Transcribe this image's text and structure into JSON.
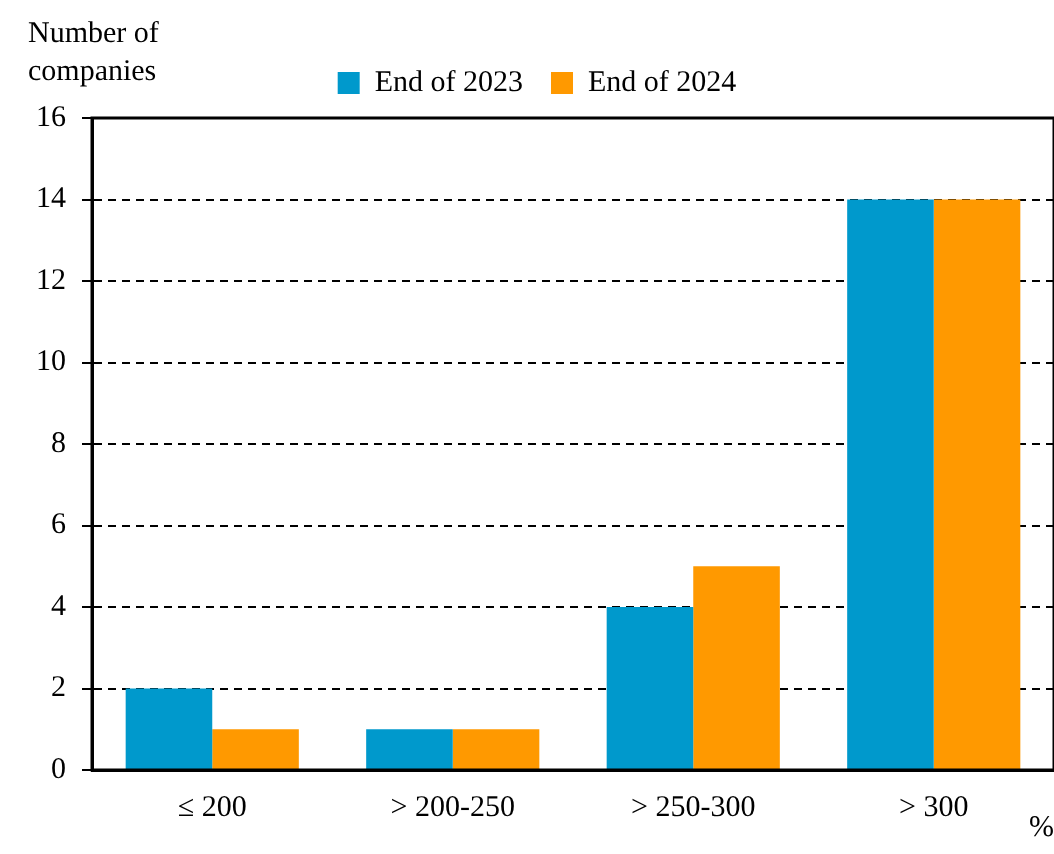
{
  "chart_data": {
    "type": "bar",
    "ylabel": "Number of companies",
    "xlabel": "%",
    "categories": [
      "≤ 200",
      "> 200-250",
      "> 250-300",
      "> 300"
    ],
    "series": [
      {
        "name": "End of 2023",
        "color": "#0099cc",
        "values": [
          2,
          1,
          4,
          14
        ]
      },
      {
        "name": "End of 2024",
        "color": "#ff9900",
        "values": [
          1,
          1,
          5,
          14
        ]
      }
    ],
    "ylim": [
      0,
      16
    ],
    "yticks": [
      0,
      2,
      4,
      6,
      8,
      10,
      12,
      14,
      16
    ],
    "grid": "y",
    "legend": "top"
  }
}
